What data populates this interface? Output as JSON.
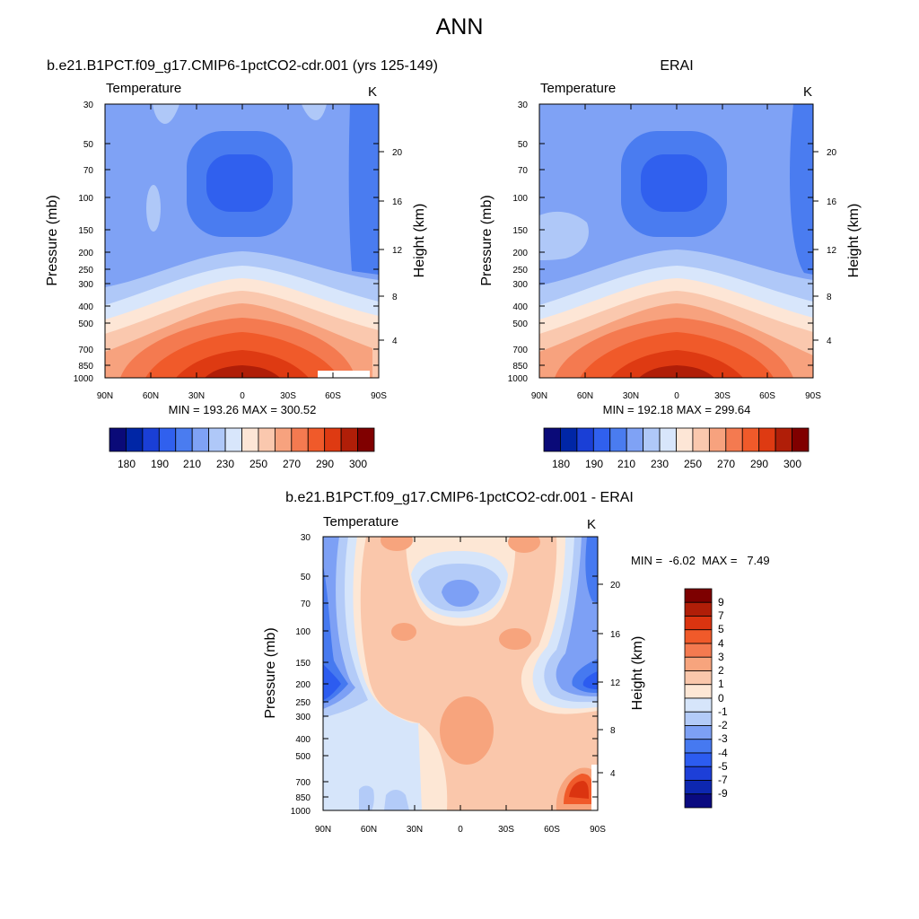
{
  "page_title": "ANN",
  "colors": {
    "abs_scale": [
      "#0a0a78",
      "#0026a6",
      "#1a3fd6",
      "#3060ee",
      "#4a7cf0",
      "#7fa2f5",
      "#afc8f8",
      "#d8e6fb",
      "#fde6d6",
      "#fac8ae",
      "#f7a27e",
      "#f47a50",
      "#f05a2a",
      "#de3a12",
      "#b01e08",
      "#800000"
    ],
    "diff_scale": [
      "#0a0a80",
      "#0d27b0",
      "#1d3fd8",
      "#2c5cf0",
      "#4679f0",
      "#7da0f5",
      "#b3cbf8",
      "#d6e5fa",
      "#fde7d5",
      "#fac7ab",
      "#f7a47d",
      "#f47a50",
      "#f05a2a",
      "#db3410",
      "#b01e08",
      "#7d0000"
    ]
  },
  "chart_data": [
    {
      "type": "heatmap",
      "title": "b.e21.B1PCT.f09_g17.CMIP6-1pctCO2-cdr.001 (yrs 125-149)",
      "variable": "Temperature",
      "units": "K",
      "ylabel": "Pressure (mb)",
      "y2label": "Height (km)",
      "x_ticks": [
        "90N",
        "60N",
        "30N",
        "0",
        "30S",
        "60S",
        "90S"
      ],
      "y_ticks": [
        "30",
        "50",
        "70",
        "100",
        "150",
        "200",
        "250",
        "300",
        "400",
        "500",
        "700",
        "850",
        "1000"
      ],
      "y2_ticks": [
        "20",
        "16",
        "12",
        "8",
        "4"
      ],
      "ylim": [
        1000,
        30
      ],
      "stats": "MIN = 193.26  MAX = 300.52",
      "min": 193.26,
      "max": 300.52,
      "colorbar_labels": [
        "180",
        "190",
        "210",
        "230",
        "250",
        "270",
        "290",
        "300"
      ],
      "levels": [
        180,
        185,
        190,
        200,
        210,
        220,
        230,
        240,
        250,
        260,
        270,
        280,
        285,
        290,
        295,
        300
      ]
    },
    {
      "type": "heatmap",
      "title": "ERAI",
      "variable": "Temperature",
      "units": "K",
      "ylabel": "Pressure (mb)",
      "y2label": "Height (km)",
      "x_ticks": [
        "90N",
        "60N",
        "30N",
        "0",
        "30S",
        "60S",
        "90S"
      ],
      "y_ticks": [
        "30",
        "50",
        "70",
        "100",
        "150",
        "200",
        "250",
        "300",
        "400",
        "500",
        "700",
        "850",
        "1000"
      ],
      "y2_ticks": [
        "20",
        "16",
        "12",
        "8",
        "4"
      ],
      "ylim": [
        1000,
        30
      ],
      "stats": "MIN = 192.18  MAX = 299.64",
      "min": 192.18,
      "max": 299.64,
      "colorbar_labels": [
        "180",
        "190",
        "210",
        "230",
        "250",
        "270",
        "290",
        "300"
      ],
      "levels": [
        180,
        185,
        190,
        200,
        210,
        220,
        230,
        240,
        250,
        260,
        270,
        280,
        285,
        290,
        295,
        300
      ]
    },
    {
      "type": "heatmap",
      "title": "b.e21.B1PCT.f09_g17.CMIP6-1pctCO2-cdr.001 - ERAI",
      "variable": "Temperature",
      "units": "K",
      "ylabel": "Pressure (mb)",
      "y2label": "Height (km)",
      "x_ticks": [
        "90N",
        "60N",
        "30N",
        "0",
        "30S",
        "60S",
        "90S"
      ],
      "y_ticks": [
        "30",
        "50",
        "70",
        "100",
        "150",
        "200",
        "250",
        "300",
        "400",
        "500",
        "700",
        "850",
        "1000"
      ],
      "y2_ticks": [
        "20",
        "16",
        "12",
        "8",
        "4"
      ],
      "ylim": [
        1000,
        30
      ],
      "stats": "MIN =  -6.02  MAX =   7.49",
      "min": -6.02,
      "max": 7.49,
      "colorbar_labels": [
        "9",
        "7",
        "5",
        "4",
        "3",
        "2",
        "1",
        "0",
        "-1",
        "-2",
        "-3",
        "-4",
        "-5",
        "-7",
        "-9"
      ]
    }
  ]
}
